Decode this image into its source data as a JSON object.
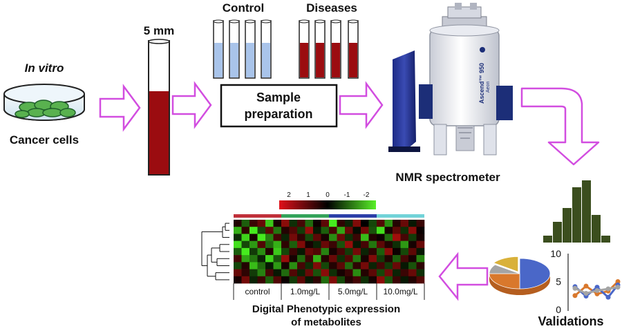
{
  "labels": {
    "in_vitro": "In vitro",
    "cancer_cells": "Cancer cells",
    "tube_size": "5 mm",
    "control": "Control",
    "diseases": "Diseases",
    "sample_prep_line1": "Sample",
    "sample_prep_line2": "preparation",
    "nmr": "NMR spectrometer",
    "magnet_brand": "Ascend™ 950",
    "magnet_sub": "Aeon",
    "validations": "Validations",
    "phenotype_line1": "Digital Phenotypic expression",
    "phenotype_line2": "of metabolites"
  },
  "heatmap": {
    "scale_ticks": [
      "2",
      "1",
      "0",
      "-1",
      "-2"
    ],
    "groups": [
      "control",
      "1.0mg/L",
      "5.0mg/L",
      "10.0mg/L"
    ],
    "group_colors": [
      "#c0303a",
      "#33a35a",
      "#2b3fa8",
      "#72d3d8"
    ],
    "rows": 9,
    "cols": 24,
    "cells": [
      [
        0.3,
        -0.8,
        0.5,
        0.9,
        -1.7,
        0.2,
        1.2,
        -0.4,
        0.6,
        -0.9,
        0.1,
        0.8,
        -2.0,
        0.4,
        -0.3,
        1.1,
        0.0,
        -0.6,
        0.7,
        -1.2,
        0.3,
        0.9,
        -0.2,
        0.5
      ],
      [
        -1.5,
        0.4,
        -2.0,
        -0.6,
        0.8,
        -1.0,
        0.3,
        0.7,
        -0.5,
        1.3,
        -0.2,
        -0.8,
        0.6,
        -1.4,
        0.9,
        -0.1,
        1.0,
        -0.7,
        -1.9,
        0.2,
        0.8,
        -0.4,
        1.2,
        0.1
      ],
      [
        -0.4,
        -1.8,
        0.2,
        -2.0,
        -1.1,
        0.6,
        -0.3,
        1.0,
        0.4,
        -0.6,
        0.8,
        0.2,
        -1.2,
        0.9,
        -0.4,
        0.5,
        -1.6,
        0.3,
        0.1,
        -0.9,
        1.4,
        0.6,
        -0.5,
        0.2
      ],
      [
        -1.9,
        -0.6,
        -1.3,
        0.7,
        -0.9,
        -1.5,
        0.4,
        -0.8,
        1.1,
        0.2,
        -0.3,
        0.9,
        0.5,
        -0.7,
        1.3,
        -0.2,
        0.6,
        -1.0,
        0.8,
        0.3,
        -0.4,
        -1.3,
        0.2,
        0.9
      ],
      [
        -0.8,
        -2.0,
        -0.5,
        -1.2,
        0.3,
        -1.7,
        -0.6,
        0.5,
        -0.2,
        0.9,
        0.7,
        -1.1,
        0.2,
        0.6,
        -0.5,
        1.0,
        -0.3,
        0.4,
        -0.8,
        1.2,
        0.1,
        -0.6,
        0.8,
        -0.2
      ],
      [
        0.6,
        -1.4,
        -1.0,
        -0.3,
        -1.8,
        -0.7,
        1.3,
        0.2,
        -0.9,
        0.5,
        -1.5,
        0.3,
        0.9,
        -0.4,
        0.7,
        -1.0,
        0.2,
        1.1,
        -0.5,
        0.3,
        -0.8,
        0.6,
        0.2,
        -1.1
      ],
      [
        -0.6,
        0.3,
        -1.6,
        -0.9,
        -0.2,
        -1.3,
        0.2,
        -1.2,
        0.6,
        -0.4,
        1.1,
        -0.6,
        0.3,
        0.8,
        -0.9,
        0.4,
        1.0,
        -0.3,
        0.6,
        -0.5,
        0.9,
        -0.2,
        -0.7,
        0.4
      ],
      [
        0.9,
        0.4,
        -0.5,
        -1.1,
        0.6,
        -0.2,
        -0.9,
        0.7,
        -0.3,
        0.9,
        -0.7,
        1.2,
        -0.4,
        0.2,
        0.5,
        -1.2,
        0.3,
        0.8,
        -0.6,
        1.0,
        -0.3,
        0.5,
        0.9,
        -0.4
      ],
      [
        0.2,
        1.0,
        -0.3,
        0.5,
        -0.8,
        0.7,
        0.1,
        -0.5,
        0.8,
        -0.2,
        0.4,
        -0.9,
        1.1,
        -0.6,
        0.3,
        0.6,
        -0.4,
        0.2,
        1.2,
        -0.7,
        0.5,
        -0.2,
        0.3,
        0.7
      ]
    ]
  },
  "chart_data": [
    {
      "type": "bar",
      "title": "",
      "categories": [
        "1",
        "2",
        "3",
        "4",
        "5",
        "6",
        "7"
      ],
      "values": [
        1,
        3,
        5,
        8,
        9,
        4,
        1
      ],
      "color": "#3b4e1e",
      "ylim": [
        0,
        10
      ]
    },
    {
      "type": "pie",
      "title": "",
      "categories": [
        "blue",
        "orange",
        "gray",
        "yellow"
      ],
      "values": [
        50,
        25,
        10,
        15
      ],
      "colors": [
        "#4a67c8",
        "#d9782c",
        "#a4a4a4",
        "#d9b13a"
      ]
    },
    {
      "type": "line",
      "title": "",
      "x": [
        1,
        2,
        3,
        4,
        5
      ],
      "yticks": [
        "0",
        "5",
        "10"
      ],
      "ylim": [
        0,
        10
      ],
      "series": [
        {
          "values": [
            2.5,
            4.2,
            2.8,
            3.3,
            5.0
          ],
          "color": "#d9782c"
        },
        {
          "values": [
            4.1,
            2.4,
            4.0,
            2.2,
            4.4
          ],
          "color": "#4a67c8"
        },
        {
          "values": [
            3.8,
            2.9,
            3.4,
            3.7,
            4.0
          ],
          "color": "#a4a4a4"
        }
      ]
    }
  ],
  "colors": {
    "arrow_stroke": "#d24de0",
    "blood_red": "#9b0c10",
    "control_blue": "#a9c4ea",
    "magnet_white": "#eef0f5",
    "magnet_blue": "#1c2e78",
    "cell_green": "#59b14f"
  }
}
